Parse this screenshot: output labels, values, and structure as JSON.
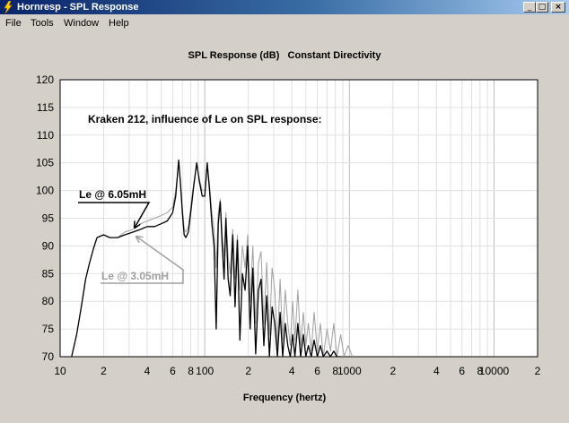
{
  "window": {
    "title": "Hornresp - SPL Response",
    "controls": {
      "minimize": "_",
      "maximize": "□",
      "close": "×"
    }
  },
  "menu": {
    "items": [
      "File",
      "Tools",
      "Window",
      "Help"
    ]
  },
  "chart_data": {
    "type": "line",
    "title": "SPL Response (dB)   Constant Directivity",
    "xlabel": "Frequency (hertz)",
    "ylabel": "",
    "xscale": "log",
    "xlim": [
      10,
      20000
    ],
    "ylim": [
      70,
      120
    ],
    "grid": true,
    "y_ticks": [
      "70",
      "75",
      "80",
      "85",
      "90",
      "95",
      "100",
      "105",
      "110",
      "115",
      "120"
    ],
    "x_ticks": [
      {
        "value": 10,
        "label": "10"
      },
      {
        "value": 20,
        "label": "2"
      },
      {
        "value": 40,
        "label": "4"
      },
      {
        "value": 60,
        "label": "6"
      },
      {
        "value": 80,
        "label": "8"
      },
      {
        "value": 100,
        "label": "100"
      },
      {
        "value": 200,
        "label": "2"
      },
      {
        "value": 400,
        "label": "4"
      },
      {
        "value": 600,
        "label": "6"
      },
      {
        "value": 800,
        "label": "8"
      },
      {
        "value": 1000,
        "label": "1000"
      },
      {
        "value": 2000,
        "label": "2"
      },
      {
        "value": 4000,
        "label": "4"
      },
      {
        "value": 6000,
        "label": "6"
      },
      {
        "value": 8000,
        "label": "8"
      },
      {
        "value": 10000,
        "label": "10000"
      },
      {
        "value": 20000,
        "label": "2"
      }
    ],
    "annotations": {
      "heading": "Kraken 212, influence of Le on SPL response:",
      "label_a": "Le @ 6.05mH",
      "label_b": "Le @ 3.05mH"
    },
    "series": [
      {
        "name": "Le @ 6.05mH",
        "color": "#000000",
        "x": [
          12,
          13,
          14,
          15,
          16,
          17,
          18,
          20,
          22,
          25,
          28,
          32,
          36,
          40,
          45,
          50,
          55,
          60,
          63,
          66,
          68,
          70,
          72,
          74,
          77,
          80,
          84,
          88,
          92,
          96,
          100,
          104,
          108,
          112,
          116,
          120,
          124,
          128,
          132,
          136,
          140,
          145,
          150,
          156,
          162,
          168,
          175,
          182,
          190,
          198,
          206,
          215,
          225,
          235,
          245,
          256,
          268,
          280,
          292,
          305,
          318,
          332,
          346,
          360,
          375,
          390,
          405,
          420,
          440,
          460,
          480,
          500,
          520,
          545,
          570,
          600,
          630,
          660,
          700,
          740,
          780,
          820,
          870
        ],
        "y": [
          70,
          74,
          79,
          84,
          87,
          89.5,
          91.5,
          92,
          91.5,
          91.5,
          92,
          92.5,
          93,
          93.5,
          93.5,
          94,
          94.5,
          96,
          99,
          105.5,
          101,
          96,
          92,
          91.5,
          92.5,
          96,
          101,
          105,
          101.5,
          99,
          99,
          105,
          100,
          94,
          90,
          75,
          94,
          98,
          90,
          84,
          95,
          84,
          81,
          92,
          79,
          91,
          73,
          85,
          82,
          90,
          75,
          86,
          70.5,
          82,
          84,
          72,
          81,
          70,
          79,
          76,
          70,
          78,
          70,
          76,
          72,
          70,
          74,
          70,
          76,
          70,
          74,
          70,
          72,
          70,
          73,
          70,
          72,
          70,
          71,
          70,
          71,
          70,
          70
        ]
      },
      {
        "name": "Le @ 3.05mH",
        "color": "#a0a0a0",
        "x": [
          12,
          13,
          14,
          15,
          16,
          17,
          18,
          20,
          22,
          25,
          28,
          32,
          36,
          40,
          45,
          50,
          55,
          60,
          63,
          66,
          68,
          70,
          72,
          74,
          77,
          80,
          84,
          88,
          92,
          96,
          100,
          104,
          108,
          112,
          116,
          120,
          124,
          128,
          132,
          136,
          140,
          145,
          150,
          156,
          162,
          168,
          175,
          182,
          190,
          198,
          206,
          215,
          225,
          235,
          245,
          256,
          268,
          280,
          292,
          305,
          318,
          332,
          346,
          360,
          375,
          390,
          405,
          420,
          440,
          460,
          480,
          500,
          520,
          545,
          570,
          600,
          630,
          660,
          700,
          740,
          780,
          820,
          870,
          920,
          980,
          1050
        ],
        "y": [
          70,
          74,
          79,
          84,
          87,
          89.5,
          91.5,
          92,
          91.5,
          91.5,
          92.5,
          93,
          94,
          94.5,
          95,
          95.5,
          96,
          97,
          100,
          105,
          101.5,
          97,
          93,
          92.5,
          93.5,
          97,
          101.5,
          104.5,
          102,
          100,
          100,
          104.5,
          101,
          96,
          93,
          86,
          96,
          98.5,
          92,
          88,
          96,
          88,
          85,
          93,
          84,
          92,
          82,
          90,
          86,
          92,
          80,
          90,
          76,
          87,
          89,
          76,
          87,
          74,
          86,
          82,
          72,
          84,
          73,
          82,
          76,
          72,
          80,
          73,
          82,
          72,
          78,
          72,
          76,
          71,
          78,
          71,
          76,
          70,
          75,
          71,
          76,
          70,
          74,
          70,
          72,
          70
        ]
      }
    ]
  }
}
